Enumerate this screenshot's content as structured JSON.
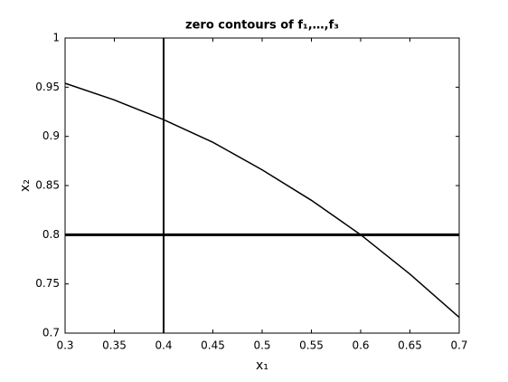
{
  "chart_data": {
    "type": "line",
    "title": "zero contours of f₁,…,f₃",
    "xlabel": "x₁",
    "ylabel": "x₂",
    "xlim": [
      0.3,
      0.7
    ],
    "ylim": [
      0.7,
      1
    ],
    "xticks": [
      0.3,
      0.35,
      0.4,
      0.45,
      0.5,
      0.55,
      0.6,
      0.65,
      0.7
    ],
    "yticks": [
      0.7,
      0.75,
      0.8,
      0.85,
      0.9,
      0.95,
      1
    ],
    "grid": false,
    "series": [
      {
        "color": "#000000",
        "width": 2,
        "x": [
          0.4,
          0.4
        ],
        "values": [
          0.7,
          1
        ]
      },
      {
        "color": "#000000",
        "width": 3,
        "x": [
          0.3,
          0.7
        ],
        "values": [
          0.8,
          0.8
        ]
      },
      {
        "color": "#000000",
        "width": 1.5,
        "x": [
          0.3,
          0.35,
          0.4,
          0.45,
          0.5,
          0.55,
          0.6,
          0.65,
          0.7
        ],
        "values": [
          0.954,
          0.937,
          0.917,
          0.894,
          0.866,
          0.835,
          0.8,
          0.76,
          0.716
        ]
      }
    ]
  }
}
